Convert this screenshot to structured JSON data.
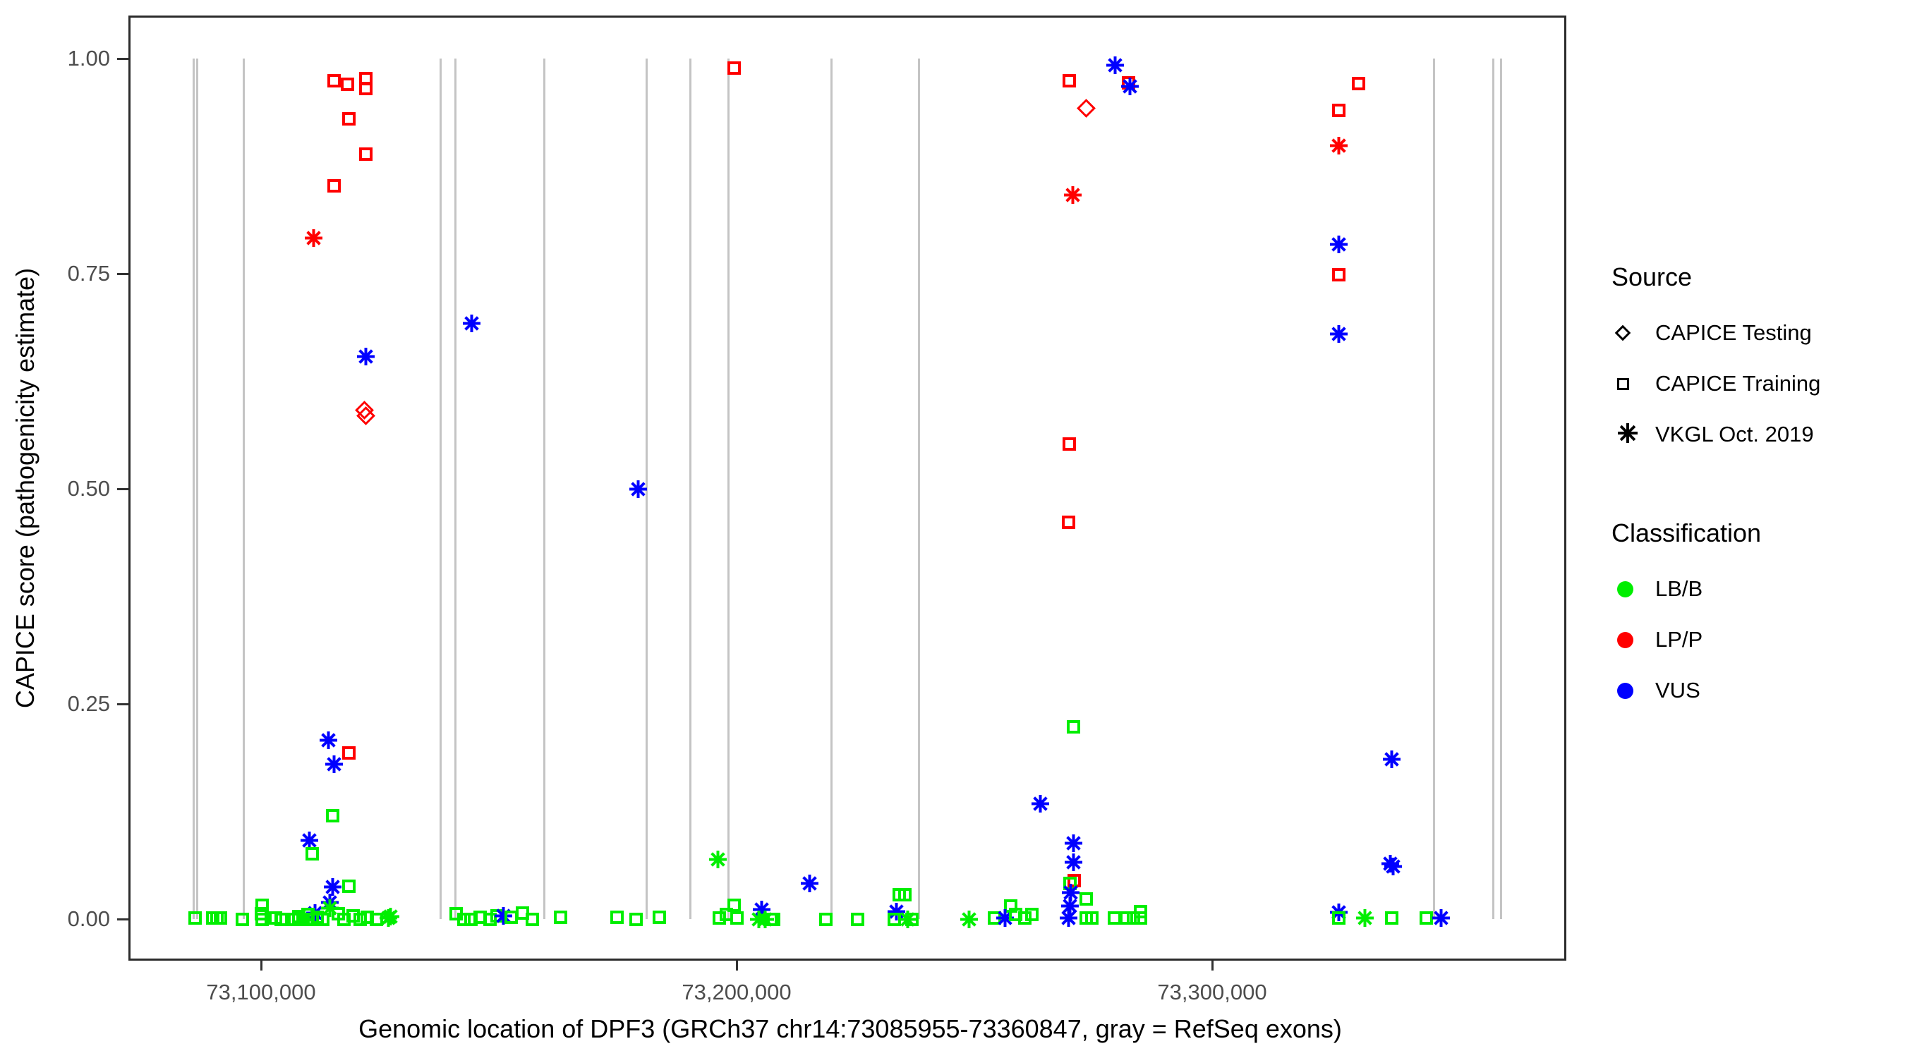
{
  "figure": {
    "legend": {
      "source": {
        "title": "Source",
        "items": [
          {
            "label": "CAPICE Testing",
            "shape": "diamond"
          },
          {
            "label": "CAPICE Training",
            "shape": "square"
          },
          {
            "label": "VKGL Oct. 2019",
            "shape": "asterisk"
          }
        ]
      },
      "classification": {
        "title": "Classification",
        "items": [
          {
            "label": "LB/B",
            "color": "#00ee00"
          },
          {
            "label": "LP/P",
            "color": "#ff0000"
          },
          {
            "label": "VUS",
            "color": "#0000ff"
          }
        ]
      }
    }
  },
  "chart_data": {
    "type": "scatter",
    "xlabel": "Genomic location of DPF3 (GRCh37 chr14:73085955-73360847, gray = RefSeq exons)",
    "ylabel": "CAPICE score (pathogenicity estimate)",
    "xlim": [
      73072210,
      73374590
    ],
    "ylim": [
      -0.05,
      1.05
    ],
    "x_ticks": [
      {
        "pos": 73100000,
        "label": "73,100,000"
      },
      {
        "pos": 73200000,
        "label": "73,200,000"
      },
      {
        "pos": 73300000,
        "label": "73,300,000"
      }
    ],
    "y_ticks": [
      {
        "value": 0.0,
        "label": "0.00"
      },
      {
        "value": 0.25,
        "label": "0.25"
      },
      {
        "value": 0.5,
        "label": "0.50"
      },
      {
        "value": 0.75,
        "label": "0.75"
      },
      {
        "value": 1.0,
        "label": "1.00"
      }
    ],
    "grid": "off",
    "legend_position": "right",
    "shape_by_source": {
      "d": "CAPICE Testing (diamond)",
      "s": "CAPICE Training (square)",
      "a": "VKGL Oct. 2019 (asterisk)"
    },
    "color_by_classification": {
      "g": "LB/B #00ee00",
      "r": "LP/P #ff0000",
      "b": "VUS #0000ff"
    },
    "refseq_exons_pos": [
      73085800,
      73086600,
      73096300,
      73137800,
      73140900,
      73159600,
      73181100,
      73190300,
      73198300,
      73220000,
      73238400,
      73346600,
      73359100,
      73360800
    ],
    "points_format": [
      "genomic_position",
      "capice_score",
      "source_code",
      "classification_code"
    ],
    "points": [
      [
        73115300,
        0.974,
        "s",
        "r"
      ],
      [
        73118200,
        0.97,
        "s",
        "r"
      ],
      [
        73122000,
        0.977,
        "s",
        "r"
      ],
      [
        73122000,
        0.965,
        "s",
        "r"
      ],
      [
        73118400,
        0.93,
        "s",
        "r"
      ],
      [
        73122000,
        0.889,
        "s",
        "r"
      ],
      [
        73115300,
        0.852,
        "s",
        "r"
      ],
      [
        73111100,
        0.791,
        "a",
        "r"
      ],
      [
        73122000,
        0.654,
        "a",
        "b"
      ],
      [
        73121800,
        0.591,
        "d",
        "r"
      ],
      [
        73122100,
        0.585,
        "d",
        "r"
      ],
      [
        73114200,
        0.208,
        "a",
        "b"
      ],
      [
        73118400,
        0.193,
        "s",
        "r"
      ],
      [
        73115400,
        0.18,
        "a",
        "b"
      ],
      [
        73115100,
        0.12,
        "s",
        "g"
      ],
      [
        73110100,
        0.091,
        "a",
        "b"
      ],
      [
        73110800,
        0.076,
        "s",
        "g"
      ],
      [
        73115100,
        0.037,
        "a",
        "b"
      ],
      [
        73118400,
        0.038,
        "s",
        "g"
      ],
      [
        73114400,
        0.019,
        "a",
        "b"
      ],
      [
        73111400,
        0.007,
        "a",
        "b"
      ],
      [
        73114500,
        0.013,
        "a",
        "g"
      ],
      [
        73127200,
        0.003,
        "a",
        "g"
      ],
      [
        73126800,
        0.001,
        "a",
        "g"
      ],
      [
        73086200,
        0.001,
        "s",
        "g"
      ],
      [
        73089900,
        0.001,
        "s",
        "g"
      ],
      [
        73090700,
        0.001,
        "s",
        "g"
      ],
      [
        73091500,
        0.001,
        "s",
        "g"
      ],
      [
        73096000,
        0.0,
        "s",
        "g"
      ],
      [
        73100000,
        0.006,
        "s",
        "g"
      ],
      [
        73100200,
        0.016,
        "s",
        "g"
      ],
      [
        73100200,
        0.0,
        "s",
        "g"
      ],
      [
        73102200,
        0.001,
        "s",
        "g"
      ],
      [
        73103100,
        0.001,
        "s",
        "g"
      ],
      [
        73104200,
        0.0,
        "s",
        "g"
      ],
      [
        73107100,
        0.0,
        "s",
        "g"
      ],
      [
        73108000,
        0.003,
        "s",
        "g"
      ],
      [
        73108900,
        0.0,
        "s",
        "g"
      ],
      [
        73109900,
        0.005,
        "s",
        "g"
      ],
      [
        73110800,
        0.0,
        "s",
        "g"
      ],
      [
        73111800,
        0.002,
        "s",
        "g"
      ],
      [
        73113000,
        0.0,
        "s",
        "g"
      ],
      [
        73116300,
        0.006,
        "s",
        "g"
      ],
      [
        73117400,
        0.0,
        "s",
        "g"
      ],
      [
        73119300,
        0.004,
        "s",
        "g"
      ],
      [
        73120800,
        0.0,
        "s",
        "g"
      ],
      [
        73122300,
        0.002,
        "s",
        "g"
      ],
      [
        73124200,
        0.0,
        "s",
        "g"
      ],
      [
        73141000,
        0.006,
        "s",
        "g"
      ],
      [
        73142700,
        0.0,
        "s",
        "g"
      ],
      [
        73144200,
        0.0,
        "s",
        "g"
      ],
      [
        73146000,
        0.002,
        "s",
        "g"
      ],
      [
        73148200,
        0.0,
        "s",
        "g"
      ],
      [
        73149700,
        0.004,
        "s",
        "g"
      ],
      [
        73150900,
        0.004,
        "a",
        "b"
      ],
      [
        73152600,
        0.002,
        "s",
        "g"
      ],
      [
        73154900,
        0.007,
        "s",
        "g"
      ],
      [
        73157100,
        0.0,
        "s",
        "g"
      ],
      [
        73163000,
        0.002,
        "s",
        "g"
      ],
      [
        73174900,
        0.002,
        "s",
        "g"
      ],
      [
        73178900,
        0.0,
        "s",
        "g"
      ],
      [
        73183800,
        0.002,
        "s",
        "g"
      ],
      [
        73144300,
        0.692,
        "a",
        "b"
      ],
      [
        73179300,
        0.5,
        "a",
        "b"
      ],
      [
        73199500,
        0.989,
        "s",
        "r"
      ],
      [
        73196100,
        0.069,
        "a",
        "g"
      ],
      [
        73199500,
        0.016,
        "s",
        "g"
      ],
      [
        73197900,
        0.005,
        "s",
        "g"
      ],
      [
        73200000,
        0.001,
        "s",
        "g"
      ],
      [
        73196400,
        0.001,
        "s",
        "g"
      ],
      [
        73205200,
        0.011,
        "a",
        "b"
      ],
      [
        73204700,
        0.0,
        "a",
        "g"
      ],
      [
        73206000,
        0.0,
        "a",
        "g"
      ],
      [
        73207200,
        0.0,
        "s",
        "g"
      ],
      [
        73207800,
        0.0,
        "s",
        "g"
      ],
      [
        73215400,
        0.041,
        "a",
        "b"
      ],
      [
        73218800,
        0.0,
        "s",
        "g"
      ],
      [
        73225500,
        0.0,
        "s",
        "g"
      ],
      [
        73234200,
        0.028,
        "s",
        "g"
      ],
      [
        73235400,
        0.028,
        "s",
        "g"
      ],
      [
        73233600,
        0.009,
        "a",
        "b"
      ],
      [
        73233200,
        0.0,
        "s",
        "g"
      ],
      [
        73236000,
        0.0,
        "a",
        "g"
      ],
      [
        73236800,
        0.0,
        "s",
        "g"
      ],
      [
        73248900,
        0.0,
        "a",
        "g"
      ],
      [
        73279600,
        0.992,
        "a",
        "b"
      ],
      [
        73270000,
        0.974,
        "s",
        "r"
      ],
      [
        73282400,
        0.972,
        "s",
        "r"
      ],
      [
        73282700,
        0.968,
        "a",
        "b"
      ],
      [
        73273500,
        0.942,
        "d",
        "r"
      ],
      [
        73270700,
        0.841,
        "a",
        "r"
      ],
      [
        73270000,
        0.552,
        "s",
        "r"
      ],
      [
        73269800,
        0.461,
        "s",
        "r"
      ],
      [
        73270900,
        0.223,
        "s",
        "g"
      ],
      [
        73263900,
        0.134,
        "a",
        "b"
      ],
      [
        73270900,
        0.088,
        "a",
        "b"
      ],
      [
        73270900,
        0.066,
        "a",
        "b"
      ],
      [
        73271000,
        0.045,
        "s",
        "r"
      ],
      [
        73270100,
        0.041,
        "s",
        "g"
      ],
      [
        73270300,
        0.031,
        "a",
        "b"
      ],
      [
        73270100,
        0.015,
        "a",
        "b"
      ],
      [
        73269800,
        0.001,
        "a",
        "b"
      ],
      [
        73257600,
        0.015,
        "s",
        "g"
      ],
      [
        73254200,
        0.001,
        "s",
        "g"
      ],
      [
        73256400,
        0.001,
        "a",
        "b"
      ],
      [
        73258700,
        0.005,
        "s",
        "g"
      ],
      [
        73260600,
        0.001,
        "s",
        "g"
      ],
      [
        73262100,
        0.005,
        "s",
        "g"
      ],
      [
        73273500,
        0.023,
        "s",
        "g"
      ],
      [
        73273500,
        0.001,
        "s",
        "g"
      ],
      [
        73274700,
        0.001,
        "s",
        "g"
      ],
      [
        73279400,
        0.001,
        "s",
        "g"
      ],
      [
        73281900,
        0.001,
        "s",
        "g"
      ],
      [
        73283400,
        0.001,
        "s",
        "g"
      ],
      [
        73285000,
        0.009,
        "s",
        "g"
      ],
      [
        73285000,
        0.001,
        "s",
        "g"
      ],
      [
        73330800,
        0.971,
        "s",
        "r"
      ],
      [
        73326600,
        0.94,
        "s",
        "r"
      ],
      [
        73326700,
        0.899,
        "a",
        "r"
      ],
      [
        73326600,
        0.784,
        "a",
        "b"
      ],
      [
        73326600,
        0.749,
        "s",
        "r"
      ],
      [
        73326600,
        0.68,
        "a",
        "b"
      ],
      [
        73337700,
        0.186,
        "a",
        "b"
      ],
      [
        73337400,
        0.064,
        "a",
        "b"
      ],
      [
        73338100,
        0.061,
        "a",
        "b"
      ],
      [
        73326700,
        0.008,
        "a",
        "b"
      ],
      [
        73326700,
        0.001,
        "s",
        "g"
      ],
      [
        73332100,
        0.001,
        "a",
        "g"
      ],
      [
        73337700,
        0.001,
        "s",
        "g"
      ],
      [
        73345000,
        0.001,
        "s",
        "g"
      ],
      [
        73348100,
        0.001,
        "a",
        "b"
      ]
    ]
  }
}
